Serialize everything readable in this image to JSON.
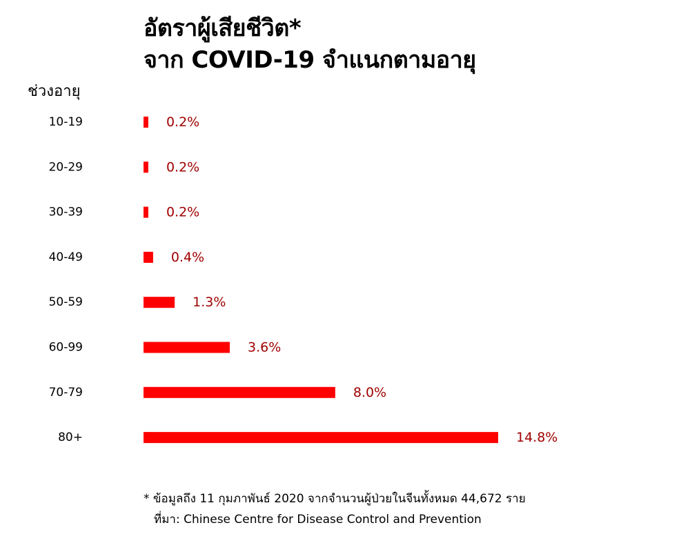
{
  "title": {
    "line1": "อัตราผู้เสียชีวิต*",
    "line2": "จาก COVID-19 จำแนกตามอายุ"
  },
  "footnote": {
    "note": "* ข้อมูลถึง 11 กุมภาพันธ์ 2020 จากจำนวนผู้ป่วยในจีนทั้งหมด 44,672 ราย",
    "source": "ที่มา: Chinese Centre for Disease Control and Prevention"
  },
  "colors": {
    "bar": "#ff0000",
    "value_label": "#a00000",
    "text": "#000000"
  },
  "chart_data": {
    "type": "bar",
    "orientation": "horizontal",
    "ylabel": "ช่วงอายุ",
    "categories": [
      "10-19",
      "20-29",
      "30-39",
      "40-49",
      "50-59",
      "60-99",
      "70-79",
      "80+"
    ],
    "values": [
      0.2,
      0.2,
      0.2,
      0.4,
      1.3,
      3.6,
      8.0,
      14.8
    ],
    "value_labels": [
      "0.2%",
      "0.2%",
      "0.2%",
      "0.4%",
      "1.3%",
      "3.6%",
      "8.0%",
      "14.8%"
    ],
    "unit": "%",
    "xlim": [
      0,
      14.8
    ],
    "grid": false,
    "legend": "none"
  }
}
